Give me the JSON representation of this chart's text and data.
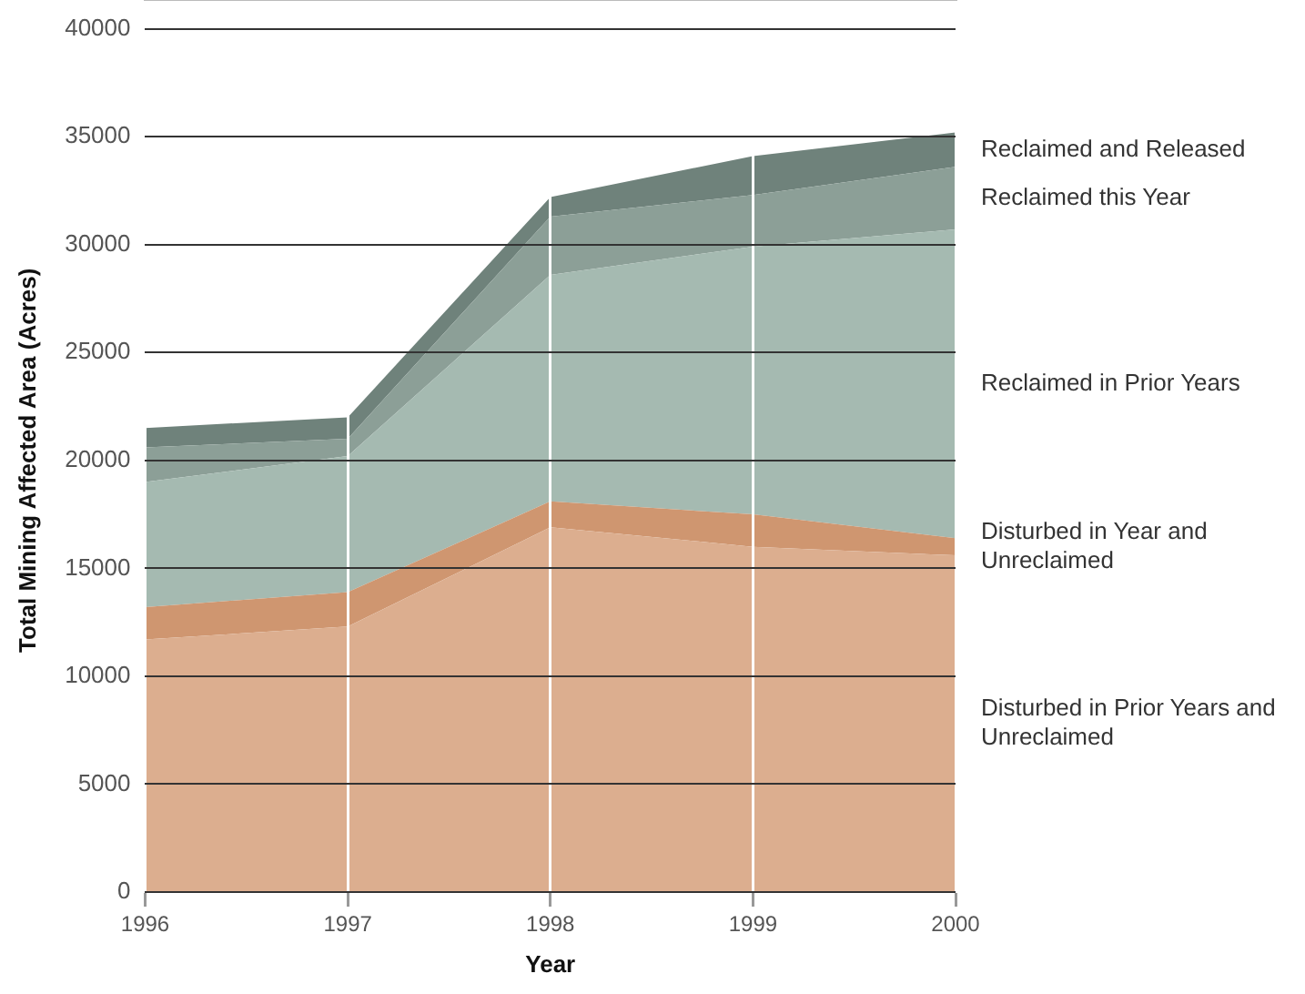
{
  "chart_data": {
    "type": "area",
    "stacked": true,
    "xlabel": "Year",
    "ylabel": "Total Mining Affected Area (Acres)",
    "categories": [
      "1996",
      "1997",
      "1998",
      "1999",
      "2000"
    ],
    "ylim": [
      0,
      40000
    ],
    "yticks": [
      0,
      5000,
      10000,
      15000,
      20000,
      25000,
      30000,
      35000,
      40000
    ],
    "grid": true,
    "legend": false,
    "series": [
      {
        "name": "Disturbed in Prior Years and Unreclaimed",
        "color": "#dcae8f",
        "values": [
          11700,
          12300,
          16900,
          16000,
          15600
        ]
      },
      {
        "name": "Disturbed in Year and Unreclaimed",
        "color": "#cf9670",
        "values": [
          1500,
          1600,
          1200,
          1500,
          800
        ]
      },
      {
        "name": "Reclaimed in Prior Years",
        "color": "#a5bab1",
        "values": [
          5800,
          6300,
          10500,
          12400,
          14300
        ]
      },
      {
        "name": "Reclaimed this Year",
        "color": "#8c9f97",
        "values": [
          1600,
          800,
          2700,
          2400,
          2900
        ]
      },
      {
        "name": "Reclaimed and Released",
        "color": "#6f827b",
        "values": [
          900,
          1000,
          900,
          1800,
          1600
        ]
      }
    ]
  }
}
